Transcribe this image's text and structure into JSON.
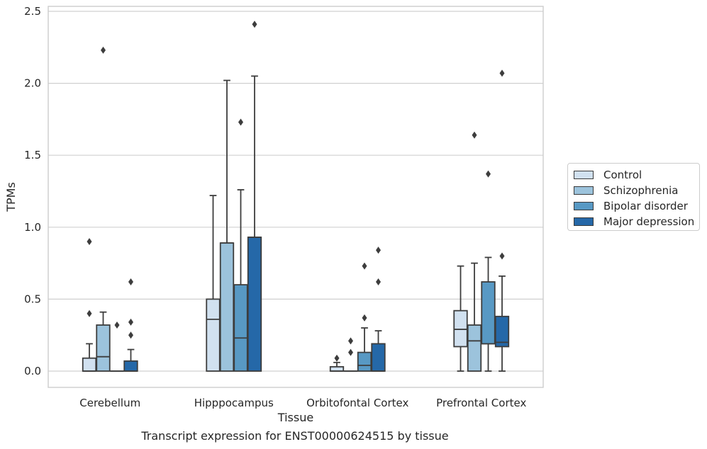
{
  "chart_data": {
    "type": "boxplot",
    "title": "",
    "caption": "Transcript expression for ENST00000624515 by tissue",
    "xlabel": "Tissue",
    "ylabel": "TPMs",
    "ylim": [
      -0.12,
      2.55
    ],
    "yticks": [
      "0.0",
      "0.5",
      "1.0",
      "1.5",
      "2.0",
      "2.5"
    ],
    "ytick_values": [
      0,
      0.5,
      1.0,
      1.5,
      2.0,
      2.5
    ],
    "grid": "horizontal",
    "legend_position": "right",
    "categories": [
      "Cerebellum",
      "Hipppocampus",
      "Orbitofontal Cortex",
      "Prefrontal Cortex"
    ],
    "series": [
      {
        "name": "Control",
        "color": "#d1e1f0",
        "boxes": [
          {
            "q1": 0,
            "median": 0,
            "q3": 0.09,
            "whislo": 0,
            "whishi": 0.19,
            "fliers": [
              0.4,
              0.9
            ]
          },
          {
            "q1": 0,
            "median": 0.36,
            "q3": 0.5,
            "whislo": 0,
            "whishi": 1.22,
            "fliers": []
          },
          {
            "q1": 0,
            "median": 0,
            "q3": 0.03,
            "whislo": 0,
            "whishi": 0.06,
            "fliers": [
              0.09
            ]
          },
          {
            "q1": 0.17,
            "median": 0.29,
            "q3": 0.42,
            "whislo": 0,
            "whishi": 0.73,
            "fliers": []
          }
        ]
      },
      {
        "name": "Schizophrenia",
        "color": "#9cc3dc",
        "boxes": [
          {
            "q1": 0,
            "median": 0.1,
            "q3": 0.32,
            "whislo": 0,
            "whishi": 0.41,
            "fliers": [
              2.23
            ]
          },
          {
            "q1": 0,
            "median": 0.89,
            "q3": 0.89,
            "whislo": 0,
            "whishi": 2.02,
            "fliers": []
          },
          {
            "q1": 0,
            "median": 0,
            "q3": 0,
            "whislo": 0,
            "whishi": 0,
            "fliers": [
              0.13,
              0.21
            ]
          },
          {
            "q1": 0,
            "median": 0.21,
            "q3": 0.32,
            "whislo": 0,
            "whishi": 0.75,
            "fliers": [
              1.64
            ]
          }
        ]
      },
      {
        "name": "Bipolar disorder",
        "color": "#5899c4",
        "boxes": [
          {
            "q1": 0,
            "median": 0,
            "q3": 0,
            "whislo": 0,
            "whishi": 0,
            "fliers": [
              0.32
            ]
          },
          {
            "q1": 0,
            "median": 0.23,
            "q3": 0.6,
            "whislo": 0,
            "whishi": 1.26,
            "fliers": [
              1.73
            ]
          },
          {
            "q1": 0,
            "median": 0.04,
            "q3": 0.13,
            "whislo": 0,
            "whishi": 0.3,
            "fliers": [
              0.37,
              0.73
            ]
          },
          {
            "q1": 0.19,
            "median": 0.19,
            "q3": 0.62,
            "whislo": 0,
            "whishi": 0.79,
            "fliers": [
              1.37
            ]
          }
        ]
      },
      {
        "name": "Major depression",
        "color": "#2568a8",
        "boxes": [
          {
            "q1": 0,
            "median": 0,
            "q3": 0.07,
            "whislo": 0,
            "whishi": 0.15,
            "fliers": [
              0.25,
              0.34,
              0.62
            ]
          },
          {
            "q1": 0,
            "median": 0.93,
            "q3": 0.93,
            "whislo": 0,
            "whishi": 2.05,
            "fliers": [
              2.41
            ]
          },
          {
            "q1": 0,
            "median": 0,
            "q3": 0.19,
            "whislo": 0,
            "whishi": 0.28,
            "fliers": [
              0.62,
              0.84
            ]
          },
          {
            "q1": 0.17,
            "median": 0.2,
            "q3": 0.38,
            "whislo": 0,
            "whishi": 0.66,
            "fliers": [
              0.8,
              2.07
            ]
          }
        ]
      }
    ]
  }
}
